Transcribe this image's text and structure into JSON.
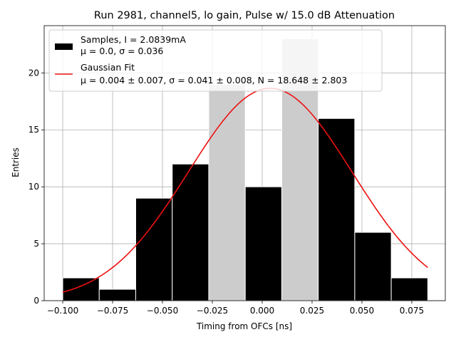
{
  "chart_data": {
    "type": "bar",
    "title": "Run 2981, channel5, lo gain, Pulse w/ 15.0 dB Attenuation",
    "xlabel": "Timing from OFCs [ns]",
    "ylabel": "Entries",
    "xlim": [
      -0.1093,
      0.0918
    ],
    "ylim": [
      0,
      24.15
    ],
    "grid": true,
    "legend_position": "upper-left",
    "x_ticks": [
      -0.1,
      -0.075,
      -0.05,
      -0.025,
      0.0,
      0.025,
      0.05,
      0.075
    ],
    "x_tick_labels": [
      "−0.100",
      "−0.075",
      "−0.050",
      "−0.025",
      "0.000",
      "0.025",
      "0.050",
      "0.075"
    ],
    "y_ticks": [
      0,
      5,
      10,
      15,
      20
    ],
    "y_tick_labels": [
      "0",
      "5",
      "10",
      "15",
      "20"
    ],
    "series": [
      {
        "name": "Samples, I = 2.0839mA",
        "name_line2": "μ = 0.0, σ = 0.036",
        "kind": "histogram",
        "bin_edges": [
          -0.1,
          -0.0817,
          -0.0634,
          -0.0451,
          -0.0268,
          -0.0085,
          0.0098,
          0.0281,
          0.0464,
          0.0647,
          0.083
        ],
        "values": [
          2,
          1,
          9,
          12,
          19,
          10,
          23,
          16,
          6,
          2
        ],
        "highlight_bins": [
          4,
          6
        ],
        "color": "#000000",
        "highlight_color": "#cccccc"
      },
      {
        "name": "Gaussian Fit",
        "name_line2": "μ = 0.004 ± 0.007, σ = 0.041 ± 0.008, N = 18.648 ± 2.803",
        "kind": "line",
        "mu": 0.004,
        "sigma": 0.041,
        "amplitude": 18.648,
        "x_range": [
          -0.1,
          0.083
        ],
        "color": "#ee1111"
      }
    ]
  }
}
